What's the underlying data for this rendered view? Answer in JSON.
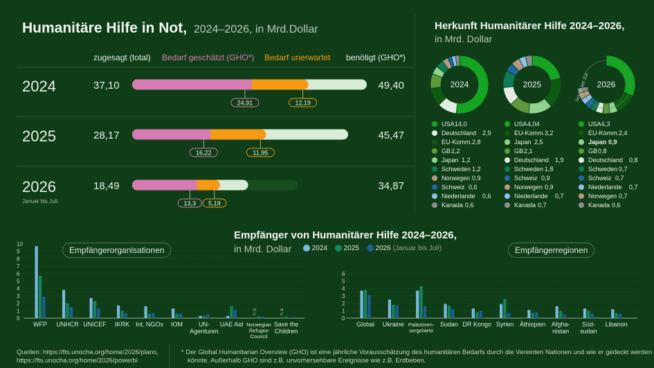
{
  "header": {
    "title": "Humanitäre Hilfe in Not,",
    "subtitle": "2024–2026, in Mrd.Dollar"
  },
  "top_chart": {
    "columns": {
      "pledged": "zugesagt (total)",
      "needs_estimated": "Bedarf geschätzt (GHO*)",
      "needs_unexpected": "Bedarf unerwartet",
      "required": "benötigt (GHO*)"
    },
    "colors": {
      "pledged": "#d77bb3",
      "unexpected": "#f59a12",
      "required": "#d9ecd6",
      "required_2026": "#174d1e"
    },
    "years": [
      {
        "year": "2024",
        "note": "",
        "pledged": "37,10",
        "required": "49,40",
        "pledged_v": 37.1,
        "required_v": 49.4,
        "estimated_label": "24,91",
        "unexpected_label": "12,19",
        "estimated_v": 24.91,
        "unexpected_v": 12.19
      },
      {
        "year": "2025",
        "note": "",
        "pledged": "28,17",
        "required": "45,47",
        "pledged_v": 28.17,
        "required_v": 45.47,
        "estimated_label": "16,22",
        "unexpected_label": "11,95",
        "estimated_v": 16.22,
        "unexpected_v": 11.95
      },
      {
        "year": "2026",
        "note": "Januar bis Juli",
        "pledged": "18,49",
        "required": "34,87",
        "pledged_v": 18.49,
        "required_v": 34.87,
        "estimated_label": "13,3",
        "unexpected_label": "5,19",
        "estimated_v": 13.3,
        "unexpected_v": 5.19
      }
    ]
  },
  "origin": {
    "title": "Herkunft Humanitärer Hilfe 2024–2026,",
    "subtitle": "in Mrd. Dollar",
    "donuts": [
      {
        "year": "2024",
        "note": "",
        "items": [
          {
            "name": "USA",
            "value": "14,0",
            "v": 14.0,
            "color": "#16a523"
          },
          {
            "name": "Deutschland",
            "value": "2,9",
            "v": 2.9,
            "color": "#dfeee0"
          },
          {
            "name": "EU-Komm.",
            "value": "2,8",
            "v": 2.8,
            "color": "#0e5a12"
          },
          {
            "name": "GB",
            "value": "2,2",
            "v": 2.2,
            "color": "#5d9a3b"
          },
          {
            "name": "Japan",
            "value": "1,2",
            "v": 1.2,
            "color": "#8fd38f"
          },
          {
            "name": "Schweden",
            "value": "1,2",
            "v": 1.2,
            "color": "#0f7a55"
          },
          {
            "name": "Norwegen",
            "value": "0,9",
            "v": 0.9,
            "color": "#b79a84"
          },
          {
            "name": "Schweiz",
            "value": "0,6",
            "v": 0.6,
            "color": "#1f67a0"
          },
          {
            "name": "Niederlande",
            "value": "0,6",
            "v": 0.6,
            "color": "#8cc2ea"
          },
          {
            "name": "Kanada",
            "value": "0,6",
            "v": 0.6,
            "color": "#8e8e8e"
          }
        ]
      },
      {
        "year": "2025",
        "note": "",
        "items": [
          {
            "name": "USA",
            "value": "4,04",
            "v": 4.04,
            "color": "#16a523"
          },
          {
            "name": "EU-Komm.",
            "value": "3,2",
            "v": 3.2,
            "color": "#0e5a12"
          },
          {
            "name": "Japan",
            "value": "2,5",
            "v": 2.5,
            "color": "#8fd38f"
          },
          {
            "name": "GB",
            "value": "2,1",
            "v": 2.1,
            "color": "#5d9a3b"
          },
          {
            "name": "Deutschland",
            "value": "1,9",
            "v": 1.9,
            "color": "#dfeee0"
          },
          {
            "name": "Schweden",
            "value": "1,8",
            "v": 1.8,
            "color": "#0f7a55"
          },
          {
            "name": "Schweiz",
            "value": "0,9",
            "v": 0.9,
            "color": "#1f67a0"
          },
          {
            "name": "Norwegen",
            "value": "0,9",
            "v": 0.9,
            "color": "#b79a84"
          },
          {
            "name": "Niederlande",
            "value": "0,7",
            "v": 0.7,
            "color": "#8cc2ea"
          },
          {
            "name": "Kanada",
            "value": "0,7",
            "v": 0.7,
            "color": "#8e8e8e"
          }
        ]
      },
      {
        "year": "2026",
        "note": "Januar bis Juli",
        "items": [
          {
            "name": "USA",
            "value": "6,3",
            "v": 6.3,
            "color": "#16a523"
          },
          {
            "name": "EU-Komm.",
            "value": "2,4",
            "v": 2.4,
            "color": "#0e5a12"
          },
          {
            "name": "Japan",
            "value": "0,9",
            "v": 0.9,
            "color": "#8fd38f"
          },
          {
            "name": "GB",
            "value": "0,8",
            "v": 0.8,
            "color": "#5d9a3b"
          },
          {
            "name": "Deutschland",
            "value": "0,8",
            "v": 0.8,
            "color": "#dfeee0"
          },
          {
            "name": "Schweden",
            "value": "0,7",
            "v": 0.7,
            "color": "#0f7a55"
          },
          {
            "name": "Schweiz",
            "value": "0,7",
            "v": 0.7,
            "color": "#1f67a0"
          },
          {
            "name": "Niederlande",
            "value": "0,7",
            "v": 0.7,
            "color": "#8cc2ea"
          },
          {
            "name": "Norwegen",
            "value": "0,7",
            "v": 0.7,
            "color": "#b79a84"
          },
          {
            "name": "Kanada",
            "value": "0,6",
            "v": 0.6,
            "color": "#8e8e8e"
          }
        ]
      }
    ]
  },
  "recipients": {
    "title": "Empfänger von Humanitärer Hilfe 2024–2026,",
    "subtitle": "in Mrd. Dollar",
    "legend": [
      {
        "label": "2024",
        "note": "",
        "color": "#7ab8dc"
      },
      {
        "label": "2025",
        "note": "",
        "color": "#14855f"
      },
      {
        "label": "2026",
        "note": "(Januar bis Juli)",
        "color": "#1e5c98"
      }
    ],
    "orgs_label": "Empfängerorganisationen",
    "regions_label": "Empfängerregionen",
    "na_label": "n.a."
  },
  "chart_data": [
    {
      "type": "bar",
      "title": "Empfängerorganisationen",
      "ylim": [
        0,
        10
      ],
      "yticks": [
        "0",
        "1",
        "2",
        "3",
        "4",
        "5",
        "6",
        "7",
        "8",
        "9",
        "10"
      ],
      "categories": [
        "WFP",
        "UNHCR",
        "UNICEF",
        "IKRK",
        "Int. NGOs",
        "IOM",
        "UN-Agenturen",
        "UAE Aid",
        "Norwegian Refugee Council",
        "Save the Children"
      ],
      "series": [
        {
          "name": "2024",
          "values": [
            9.7,
            3.8,
            2.7,
            1.7,
            1.6,
            1.3,
            0.3,
            0.3,
            null,
            null
          ]
        },
        {
          "name": "2025",
          "values": [
            5.7,
            2.0,
            2.3,
            1.0,
            0.6,
            0.6,
            0.3,
            1.6,
            0.2,
            0.2
          ]
        },
        {
          "name": "2026",
          "values": [
            2.9,
            1.5,
            1.3,
            0.7,
            0.7,
            0.6,
            0.5,
            1.1,
            0.2,
            0.1
          ]
        }
      ]
    },
    {
      "type": "bar",
      "title": "Empfängerregionen",
      "ylim": [
        0,
        6
      ],
      "yticks": [
        "0",
        "1",
        "2",
        "3",
        "4",
        "5",
        "6"
      ],
      "categories": [
        "Global",
        "Ukraine",
        "Palästinen-sergebiete",
        "Sudan",
        "DR Kongo",
        "Syrien",
        "Äthiopien",
        "Afgha-nistan",
        "Süd-sudan",
        "Libanon"
      ],
      "series": [
        {
          "name": "2024",
          "values": [
            3.7,
            2.5,
            3.7,
            1.9,
            1.3,
            1.9,
            1.1,
            1.6,
            1.3,
            1.2
          ]
        },
        {
          "name": "2025",
          "values": [
            3.8,
            1.8,
            4.3,
            1.7,
            0.8,
            2.6,
            0.7,
            1.0,
            1.0,
            0.7
          ]
        },
        {
          "name": "2026",
          "values": [
            3.1,
            1.7,
            1.6,
            1.2,
            1.0,
            0.7,
            0.8,
            0.5,
            0.6,
            0.6
          ]
        }
      ]
    }
  ],
  "footer": {
    "sources_1": "Quellen: https://fts.unocha.org/home/2026/plans,",
    "sources_2": "https://fts.unocha.org/home/2026/powerbi",
    "note_1": "* Der Global Humanitarian Overview (GHO) ist eine jährliche Vorausschätzung des humanitären Bedarfs durch die Vereinten Nationen und wie er gedeckt werden",
    "note_2": "könnte. Außerhalb GHO sind z.B. unvorhersehbare Ereignisse wie z.B. Erdbeben."
  }
}
